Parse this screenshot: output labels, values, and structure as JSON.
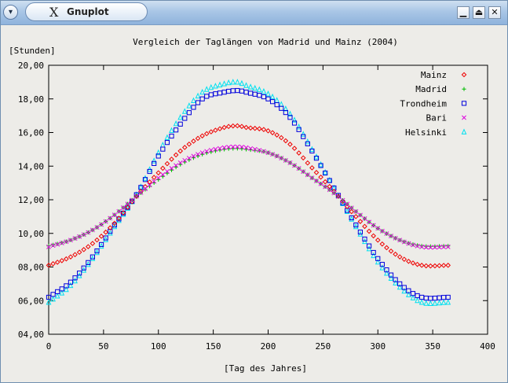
{
  "window": {
    "title": "Gnuplot",
    "icons": {
      "menu": "chevron-down-icon",
      "app": "x-icon",
      "minimize": "minimize-icon",
      "maximize": "maximize-icon",
      "close": "close-icon"
    },
    "glyphs": {
      "menu": "▾",
      "app": "X",
      "minimize": "▁",
      "maximize": "⏏",
      "close": "✕"
    }
  },
  "chart_data": {
    "type": "scatter",
    "title": "Vergleich der Taglängen von Madrid und Mainz (2004)",
    "xlabel": "[Tag des Jahres]",
    "ylabel": "[Stunden]",
    "xlim": [
      0,
      400
    ],
    "ylim": [
      4,
      20
    ],
    "x_ticks": [
      0,
      50,
      100,
      150,
      200,
      250,
      300,
      350,
      400
    ],
    "y_ticks": [
      4,
      6,
      8,
      10,
      12,
      14,
      16,
      18,
      20
    ],
    "y_tick_labels": [
      "04,00",
      "06,00",
      "08,00",
      "10,00",
      "12,00",
      "14,00",
      "16,00",
      "18,00",
      "20,00"
    ],
    "grid": false,
    "legend_position": "top-right",
    "x_step": 4,
    "x_max": 364,
    "series": [
      {
        "name": "Mainz",
        "color": "#ee0000",
        "marker": "diamond",
        "x": [
          0,
          20,
          40,
          60,
          80,
          100,
          120,
          140,
          160,
          172,
          180,
          200,
          220,
          240,
          260,
          280,
          300,
          320,
          340,
          364
        ],
        "y": [
          8.1,
          8.6,
          9.4,
          10.6,
          12.2,
          13.6,
          14.9,
          15.8,
          16.3,
          16.4,
          16.3,
          16.1,
          15.3,
          13.9,
          12.5,
          11.0,
          9.6,
          8.6,
          8.1,
          8.1
        ]
      },
      {
        "name": "Madrid",
        "color": "#00bb00",
        "marker": "plus",
        "x": [
          0,
          20,
          40,
          60,
          80,
          100,
          120,
          140,
          160,
          172,
          180,
          200,
          220,
          240,
          260,
          280,
          300,
          320,
          340,
          364
        ],
        "y": [
          9.25,
          9.6,
          10.2,
          11.1,
          12.2,
          13.2,
          14.1,
          14.7,
          15.0,
          15.05,
          15.0,
          14.8,
          14.2,
          13.3,
          12.4,
          11.3,
          10.3,
          9.6,
          9.25,
          9.25
        ]
      },
      {
        "name": "Trondheim",
        "color": "#0000dd",
        "marker": "square",
        "x": [
          0,
          20,
          40,
          60,
          80,
          100,
          120,
          140,
          160,
          172,
          180,
          200,
          220,
          240,
          260,
          280,
          300,
          320,
          340,
          364
        ],
        "y": [
          6.2,
          7.1,
          8.6,
          10.5,
          12.3,
          14.6,
          16.5,
          18.0,
          18.4,
          18.5,
          18.4,
          18.0,
          16.9,
          14.9,
          12.7,
          10.5,
          8.5,
          7.0,
          6.2,
          6.2
        ]
      },
      {
        "name": "Bari",
        "color": "#dd00dd",
        "marker": "cross",
        "x": [
          0,
          20,
          40,
          60,
          80,
          100,
          120,
          140,
          160,
          172,
          180,
          200,
          220,
          240,
          260,
          280,
          300,
          320,
          340,
          364
        ],
        "y": [
          9.2,
          9.6,
          10.2,
          11.1,
          12.2,
          13.3,
          14.2,
          14.8,
          15.1,
          15.15,
          15.1,
          14.8,
          14.2,
          13.3,
          12.4,
          11.3,
          10.3,
          9.6,
          9.2,
          9.2
        ]
      },
      {
        "name": "Helsinki",
        "color": "#00e0f0",
        "marker": "triangle",
        "x": [
          0,
          20,
          40,
          60,
          80,
          100,
          120,
          140,
          160,
          172,
          180,
          200,
          220,
          240,
          260,
          280,
          300,
          320,
          340,
          364
        ],
        "y": [
          5.9,
          6.9,
          8.5,
          10.4,
          12.3,
          14.8,
          16.9,
          18.4,
          18.9,
          19.0,
          18.8,
          18.3,
          17.1,
          15.0,
          12.7,
          10.4,
          8.3,
          6.8,
          5.9,
          5.9
        ]
      }
    ]
  }
}
